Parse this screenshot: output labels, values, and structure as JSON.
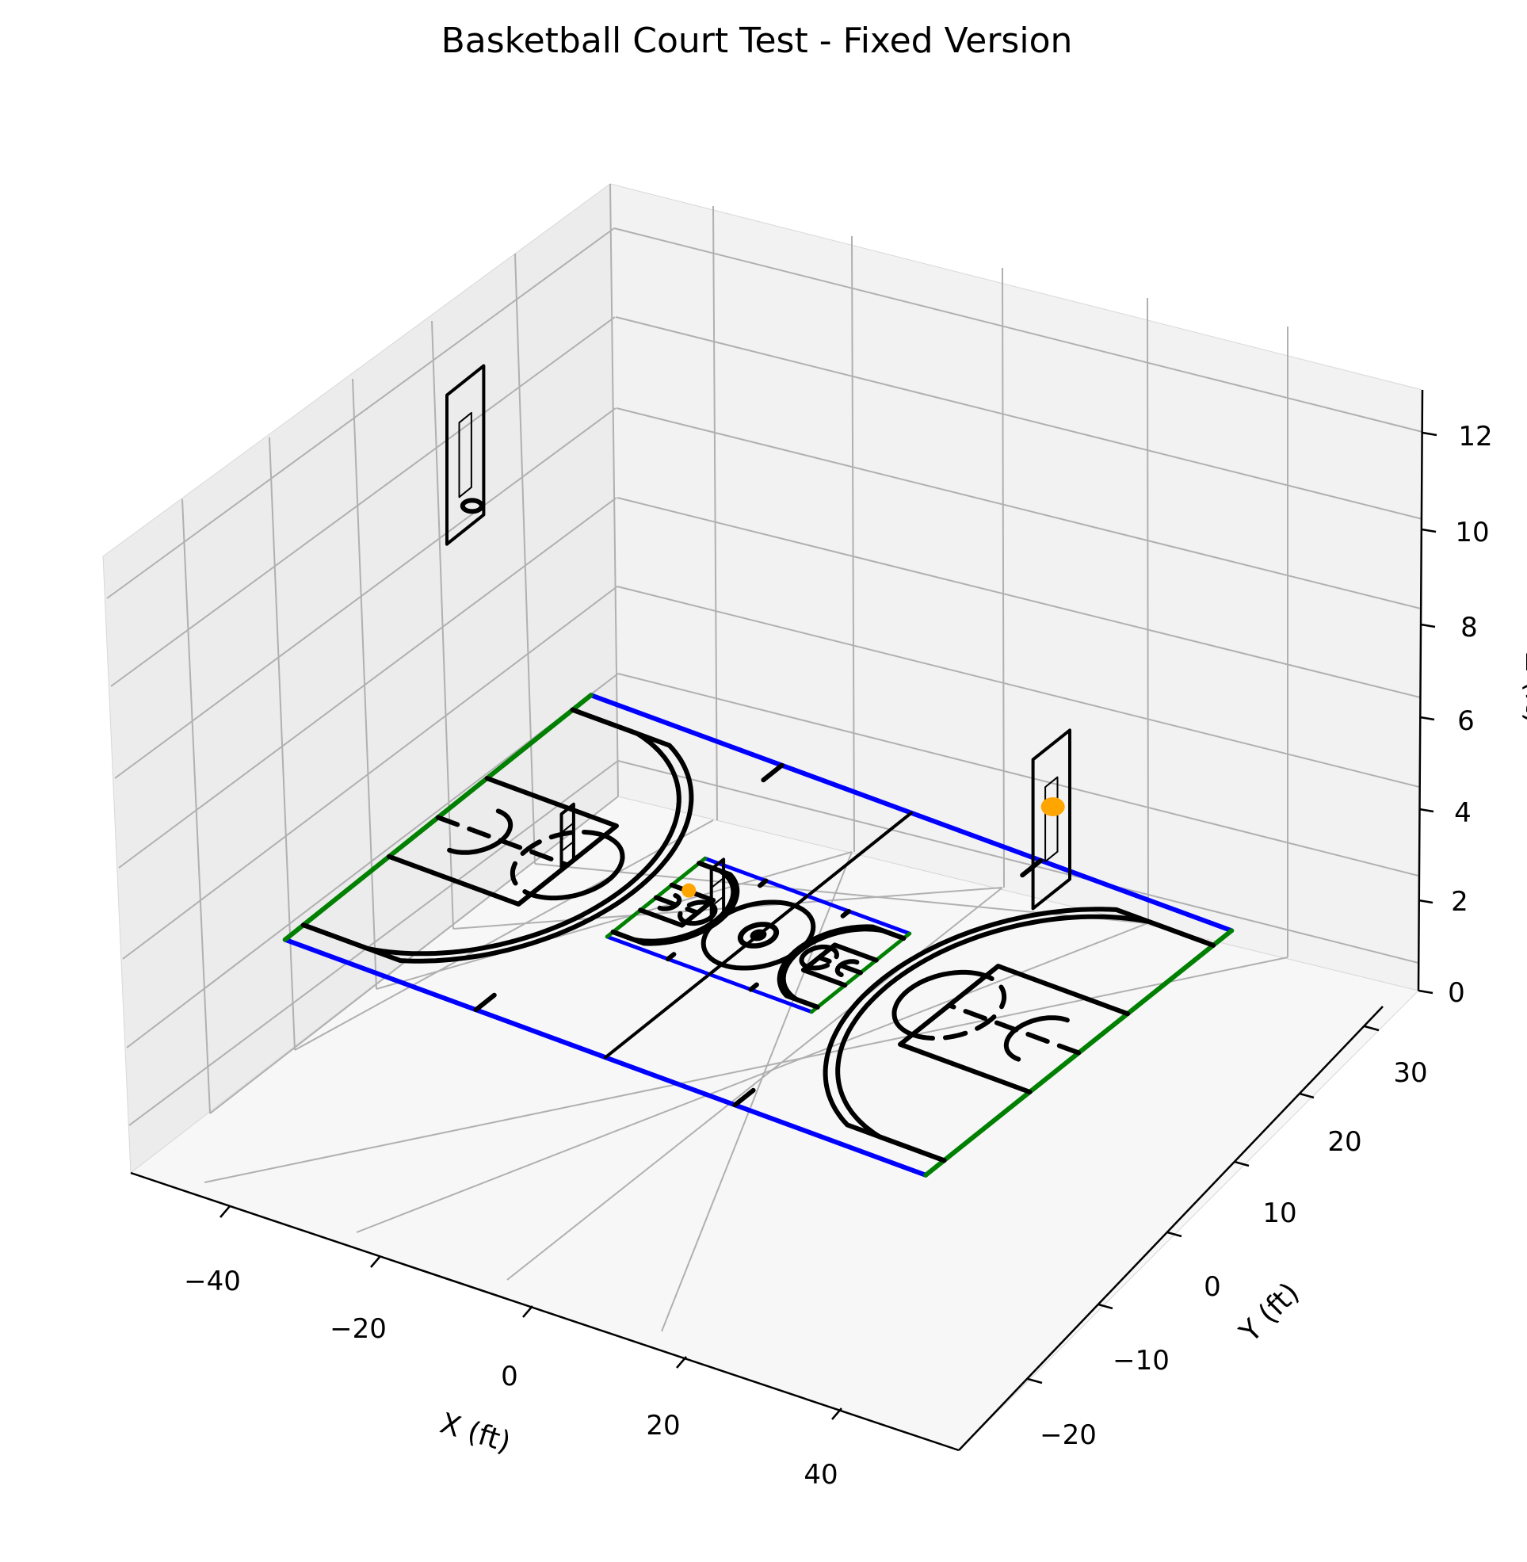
{
  "chart_data": {
    "type": "3d-line",
    "title": "Basketball Court Test - Fixed Version",
    "xlabel": "X (ft)",
    "ylabel": "Y (ft)",
    "zlabel": "Z (ft)",
    "x_ticks": [
      "−40",
      "−20",
      "0",
      "20",
      "40"
    ],
    "y_ticks": [
      "−20",
      "−10",
      "0",
      "10",
      "20",
      "30"
    ],
    "z_ticks": [
      "0",
      "2",
      "4",
      "6",
      "8",
      "10",
      "12"
    ],
    "grid": true,
    "colors": {
      "court_lines": "#000000",
      "sidelines": "#0000ff",
      "baselines": "#008000",
      "ball": "#ffa500",
      "pane_left": "#ececec",
      "pane_back": "#f2f2f2",
      "pane_floor": "#f7f7f7",
      "grid": "#b0b0b0"
    },
    "series": [
      {
        "name": "",
        "kind": "main-court",
        "x_range": [
          -47,
          47
        ],
        "y_range": [
          -25,
          25
        ],
        "z": 0
      },
      {
        "name": "",
        "kind": "mini-court",
        "x_range": [
          -15,
          15
        ],
        "y_range": [
          -8,
          8
        ],
        "z": 0
      },
      {
        "name": "",
        "kind": "backboard",
        "x": -43,
        "z_range": [
          8,
          12
        ],
        "hoop_z": 10
      },
      {
        "name": "",
        "kind": "backboard",
        "x": 43,
        "z_range": [
          4,
          8
        ],
        "hoop_z": 6
      }
    ]
  }
}
